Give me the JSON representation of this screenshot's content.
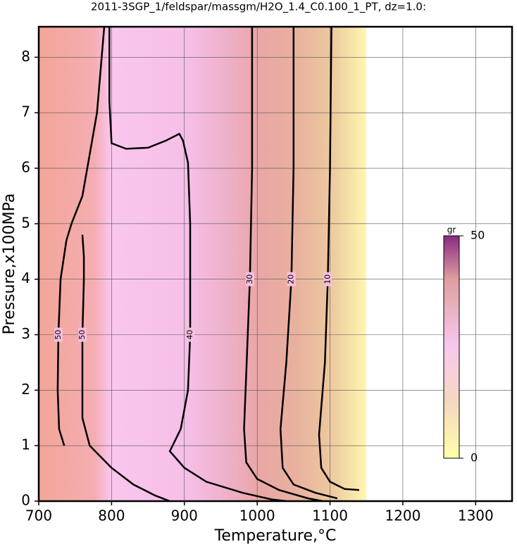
{
  "chart_data": {
    "type": "contour",
    "title": "2011-3SGP_1/feldspar/massgm/H2O_1.4_C0.100_1_PT, dz=1.0:",
    "xlabel": "Temperature,°C",
    "ylabel": "Pressure,x100MPa",
    "xlim": [
      700,
      1350
    ],
    "ylim": [
      0,
      8.55
    ],
    "xticks": [
      700,
      800,
      900,
      1000,
      1100,
      1200,
      1300
    ],
    "yticks": [
      0,
      1,
      2,
      3,
      4,
      5,
      6,
      7,
      8
    ],
    "grid": true,
    "line_color": "#000000",
    "colorbar": {
      "label": "gr",
      "lim": [
        0,
        50
      ],
      "ticks": [
        0,
        50
      ]
    },
    "contours": [
      {
        "level": 10,
        "x": [
          1102,
          1100,
          1097,
          1093,
          1085,
          1088,
          1100,
          1120,
          1140
        ],
        "y": [
          8.55,
          6,
          4,
          2.5,
          1.2,
          0.6,
          0.35,
          0.22,
          0.2
        ]
      },
      {
        "level": 20,
        "x": [
          1050,
          1050,
          1047,
          1040,
          1032,
          1035,
          1050,
          1080,
          1110
        ],
        "y": [
          8.55,
          6,
          4,
          2.5,
          1.3,
          0.6,
          0.3,
          0.15,
          0.05
        ]
      },
      {
        "level": 30,
        "x": [
          993,
          993,
          990,
          985,
          982,
          985,
          1000,
          1030,
          1070,
          1090
        ],
        "y": [
          8.55,
          6,
          4,
          2.3,
          1.3,
          0.7,
          0.4,
          0.2,
          0.05,
          0
        ]
      },
      {
        "level": 40,
        "x": [
          797,
          797,
          800,
          820,
          850,
          875,
          893,
          898,
          905,
          908,
          908,
          905,
          895,
          880,
          900,
          930,
          980,
          1020,
          1040
        ],
        "y": [
          8.55,
          7.2,
          6.45,
          6.35,
          6.37,
          6.5,
          6.62,
          6.5,
          6.1,
          5,
          3,
          2,
          1.3,
          0.9,
          0.6,
          0.35,
          0.15,
          0.03,
          0
        ]
      },
      {
        "level": 50,
        "x": [
          790,
          780,
          760,
          745,
          738,
          730,
          727,
          726,
          728,
          735
        ],
        "y": [
          8.55,
          7,
          5.5,
          5,
          4.7,
          4,
          3,
          2,
          1.3,
          1
        ]
      },
      {
        "level": 50,
        "x": [
          760,
          762,
          762,
          760,
          760,
          770,
          800,
          830,
          860,
          880
        ],
        "y": [
          4.8,
          4.4,
          4,
          3,
          1.5,
          1,
          0.6,
          0.3,
          0.1,
          0
        ]
      }
    ]
  }
}
